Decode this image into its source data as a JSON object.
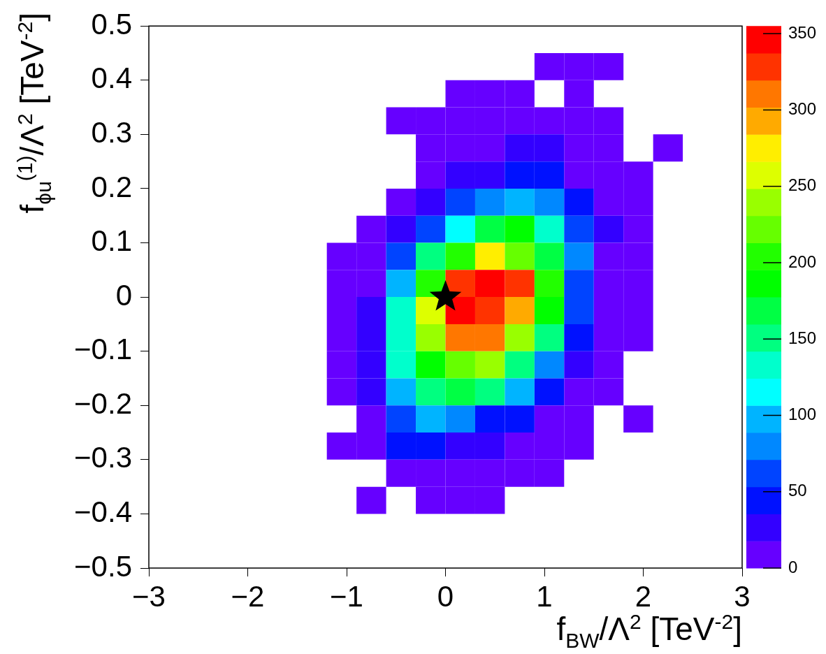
{
  "chart_data": {
    "type": "heatmap",
    "xlabel": "f$_{BW}$/Λ$^{2}$ [TeV$^{-2}$]",
    "ylabel": "f$_{ϕu}$$^{(1)}$/Λ$^{2}$ [TeV$^{-2}$]",
    "x": [
      -1.05,
      -0.75,
      -0.45,
      -0.15,
      0.15,
      0.45,
      0.75,
      1.05,
      1.35,
      1.65,
      1.95,
      2.25
    ],
    "y": [
      0.425,
      0.375,
      0.325,
      0.275,
      0.225,
      0.175,
      0.125,
      0.075,
      0.025,
      -0.025,
      -0.075,
      -0.125,
      -0.175,
      -0.225,
      -0.275,
      -0.325,
      -0.375
    ],
    "xlim": [
      -3,
      3
    ],
    "xticks": [
      {
        "value": -3,
        "label": "−3"
      },
      {
        "value": -2,
        "label": "−2"
      },
      {
        "value": -1,
        "label": "−1"
      },
      0,
      1,
      2,
      3
    ],
    "ylim": [
      -0.5,
      0.5
    ],
    "yticks": [
      {
        "value": -0.5,
        "label": "−0.5"
      },
      {
        "value": -0.4,
        "label": "−0.4"
      },
      {
        "value": -0.3,
        "label": "−0.3"
      },
      {
        "value": -0.2,
        "label": "−0.2"
      },
      {
        "value": -0.1,
        "label": "−0.1"
      },
      0,
      0.1,
      0.2,
      0.3,
      0.4,
      0.5
    ],
    "clim": [
      0,
      355
    ],
    "cticks": [
      0,
      50,
      100,
      150,
      200,
      250,
      300,
      350
    ],
    "marker": "star",
    "series": [
      {
        "type": "scatter",
        "x": [
          0
        ],
        "values": [
          0
        ],
        "color": "#000000"
      }
    ],
    "cells": [
      [
        null,
        null,
        null,
        null,
        null,
        null,
        null,
        9,
        9,
        9,
        null,
        null
      ],
      [
        null,
        null,
        null,
        null,
        9,
        9,
        9,
        null,
        9,
        null,
        null,
        null
      ],
      [
        null,
        null,
        9,
        9,
        9,
        9,
        9,
        9,
        9,
        9,
        null,
        null
      ],
      [
        null,
        null,
        null,
        9,
        9,
        9,
        27,
        27,
        9,
        9,
        null,
        9
      ],
      [
        null,
        null,
        null,
        9,
        27,
        27,
        44,
        44,
        9,
        9,
        9,
        null
      ],
      [
        null,
        null,
        9,
        27,
        62,
        80,
        98,
        80,
        44,
        9,
        9,
        null
      ],
      [
        null,
        9,
        27,
        62,
        115,
        169,
        186,
        133,
        62,
        27,
        9,
        null
      ],
      [
        9,
        9,
        62,
        151,
        204,
        275,
        222,
        169,
        80,
        9,
        9,
        null
      ],
      [
        9,
        9,
        98,
        204,
        328,
        346,
        328,
        204,
        62,
        9,
        9,
        null
      ],
      [
        9,
        27,
        133,
        257,
        346,
        328,
        293,
        186,
        62,
        9,
        9,
        null
      ],
      [
        9,
        27,
        133,
        240,
        311,
        311,
        240,
        151,
        44,
        9,
        9,
        null
      ],
      [
        9,
        27,
        133,
        186,
        222,
        240,
        151,
        80,
        27,
        9,
        null,
        null
      ],
      [
        9,
        27,
        98,
        151,
        169,
        151,
        98,
        44,
        9,
        9,
        null,
        null
      ],
      [
        null,
        9,
        62,
        98,
        80,
        44,
        44,
        9,
        9,
        null,
        9,
        null
      ],
      [
        9,
        9,
        44,
        44,
        27,
        27,
        9,
        9,
        9,
        null,
        null,
        null
      ],
      [
        null,
        null,
        9,
        9,
        9,
        9,
        9,
        9,
        null,
        null,
        null,
        null
      ],
      [
        null,
        9,
        null,
        9,
        9,
        9,
        null,
        null,
        null,
        null,
        null,
        null
      ]
    ]
  }
}
